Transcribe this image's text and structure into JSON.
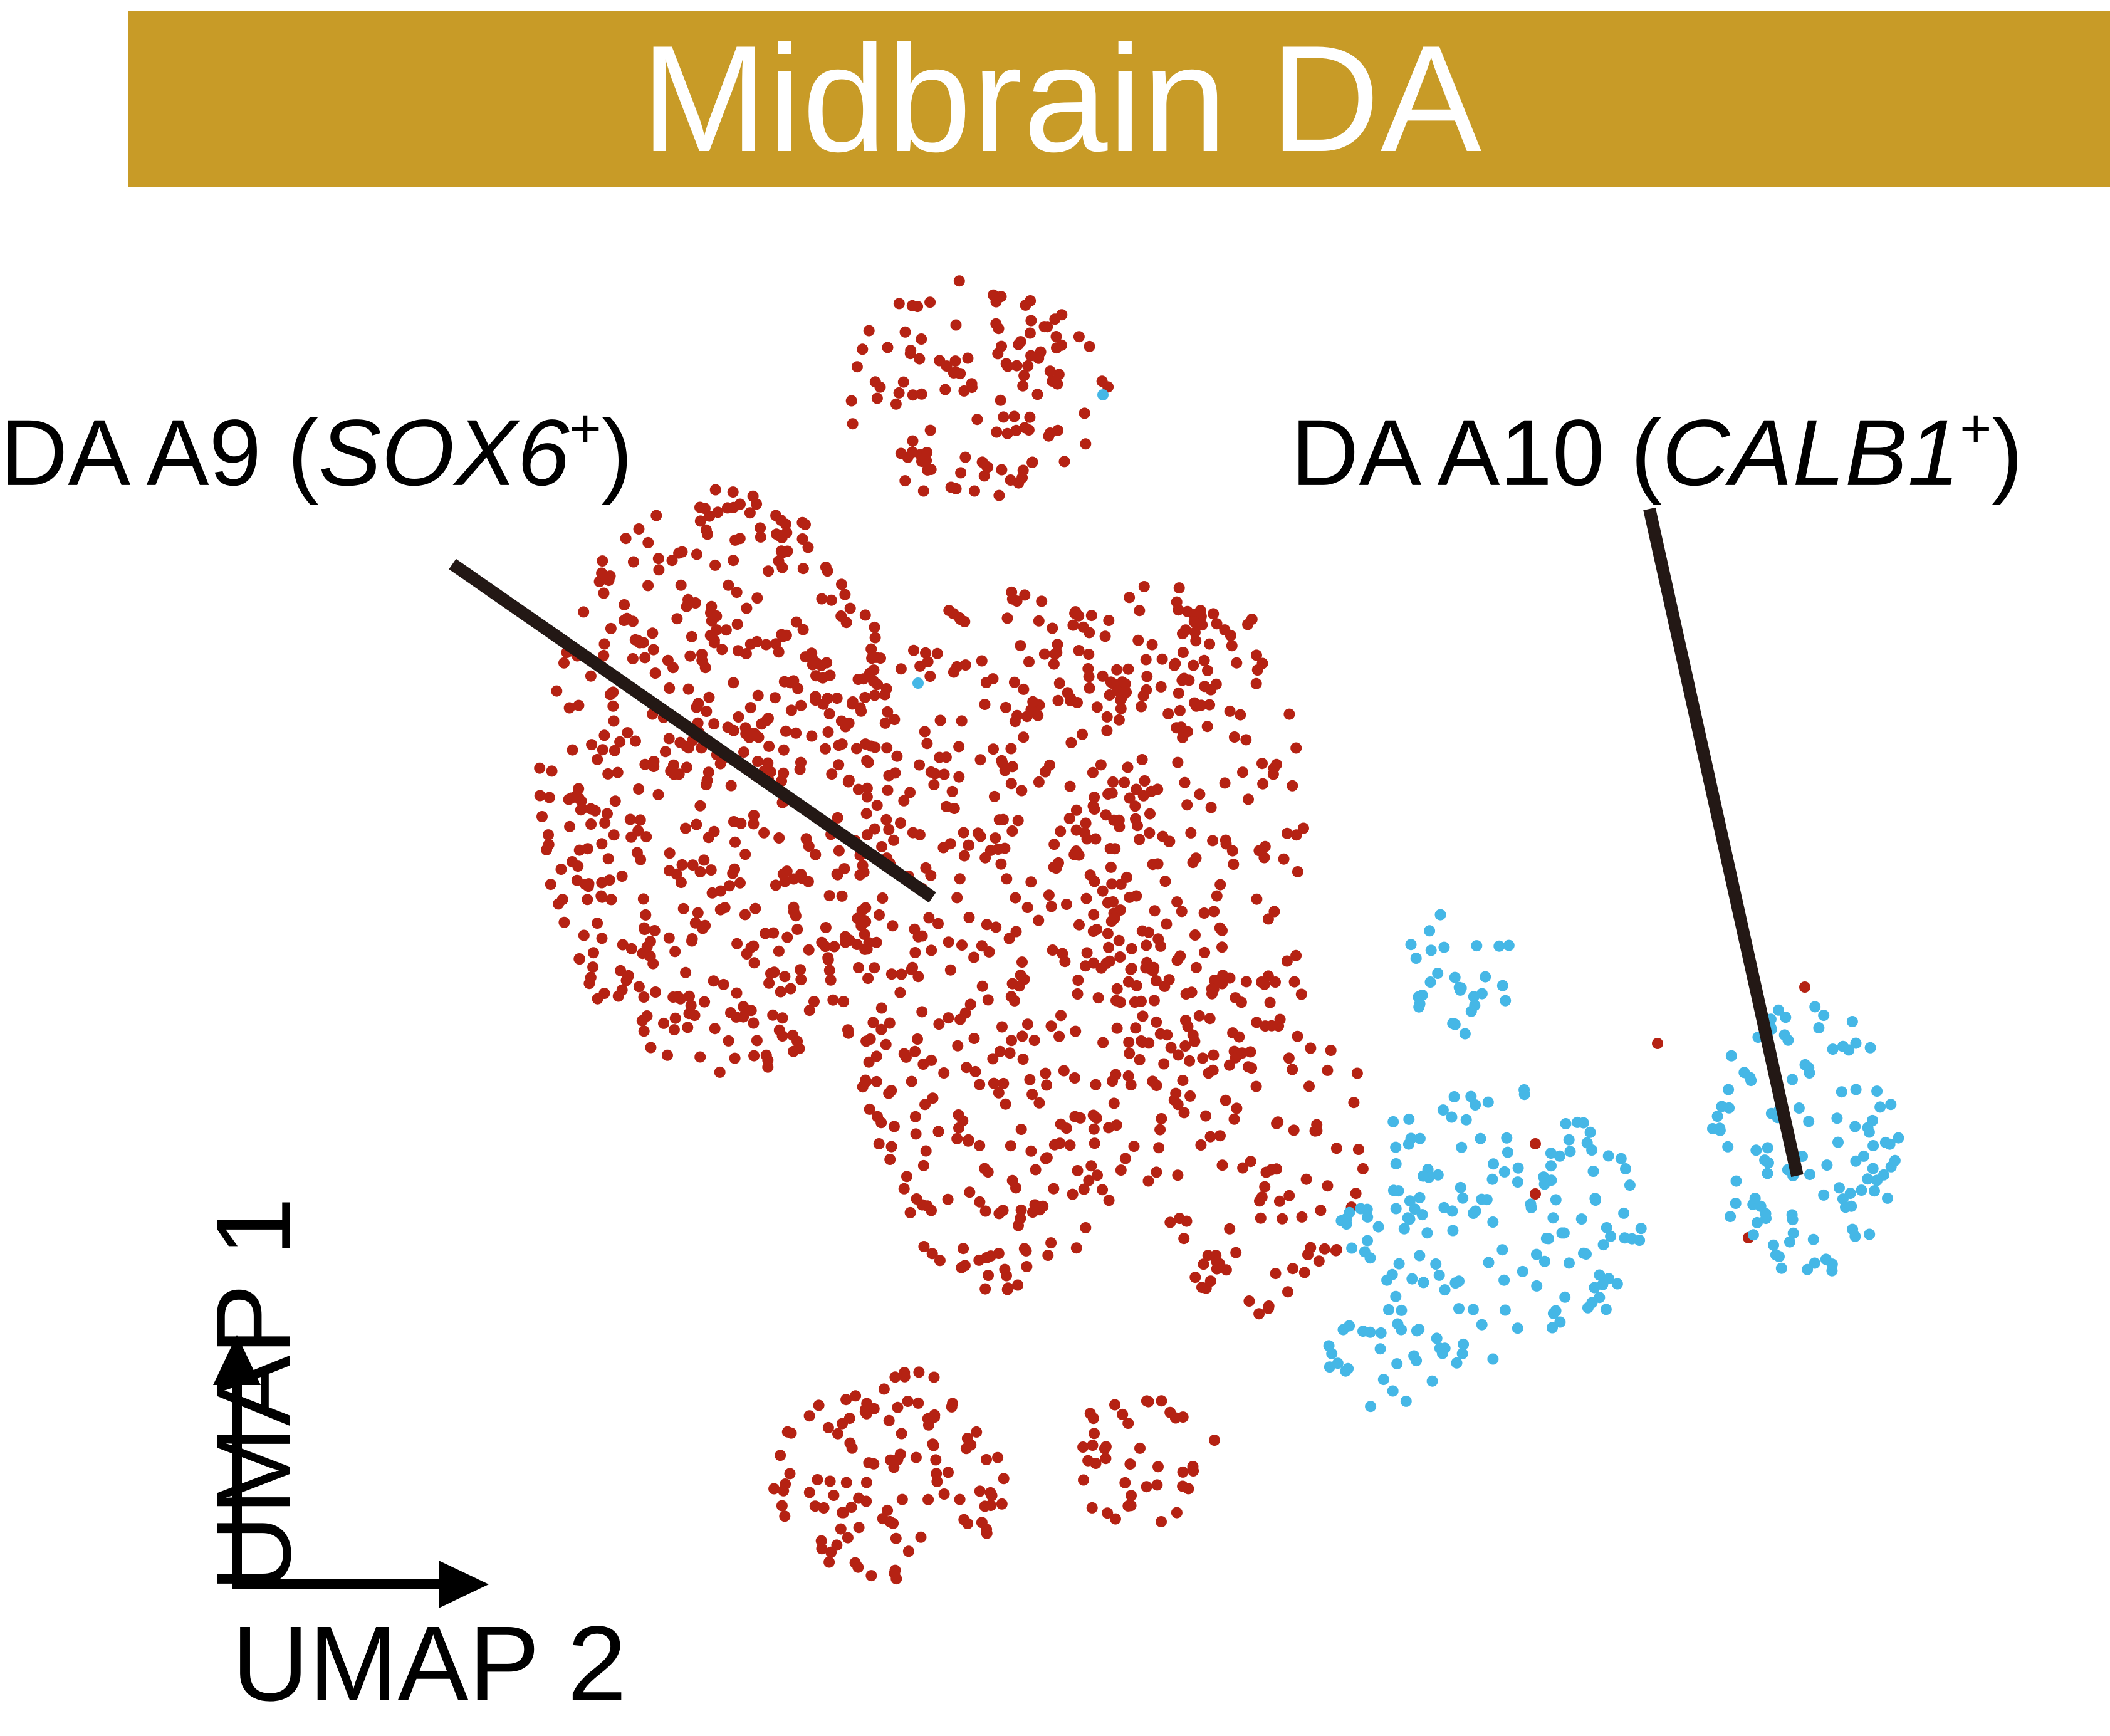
{
  "title": "Midbrain DA",
  "colors": {
    "banner": "#C89B27",
    "title_text": "#ffffff",
    "a9_points": "#B52213",
    "a10_points": "#45B7E6",
    "leader_line": "#231815"
  },
  "labels": {
    "a9_prefix": "DA A9 (",
    "a9_gene": "SOX6",
    "a9_sup": "+",
    "a9_suffix": ")",
    "a10_prefix": "DA A10 (",
    "a10_gene": "CALB1",
    "a10_sup": "+",
    "a10_suffix": ")"
  },
  "axes": {
    "x_label": "UMAP 2",
    "y_label": "UMAP 1"
  },
  "chart_data": {
    "type": "scatter",
    "title": "Midbrain DA",
    "xlabel": "UMAP 2",
    "ylabel": "UMAP 1",
    "grid": false,
    "legend": "none",
    "series": [
      {
        "name": "DA A9 (SOX6+)",
        "color": "#B52213",
        "regions": [
          {
            "cx": 1560,
            "cy": 620,
            "rx": 210,
            "ry": 180,
            "n": 120
          },
          {
            "cx": 1150,
            "cy": 1250,
            "rx": 290,
            "ry": 470,
            "n": 520
          },
          {
            "cx": 1600,
            "cy": 1500,
            "rx": 260,
            "ry": 560,
            "n": 420
          },
          {
            "cx": 1900,
            "cy": 1350,
            "rx": 190,
            "ry": 380,
            "n": 160
          },
          {
            "cx": 2000,
            "cy": 1820,
            "rx": 180,
            "ry": 280,
            "n": 120
          },
          {
            "cx": 1420,
            "cy": 2350,
            "rx": 190,
            "ry": 170,
            "n": 110
          },
          {
            "cx": 1830,
            "cy": 2330,
            "rx": 120,
            "ry": 120,
            "n": 40
          },
          {
            "cx": 1850,
            "cy": 1050,
            "rx": 170,
            "ry": 130,
            "n": 60
          }
        ],
        "extra_points": [
          [
            2450,
            1825
          ],
          [
            2880,
            1575
          ],
          [
            2450,
            1905
          ],
          [
            2645,
            1665
          ],
          [
            2790,
            1975
          ]
        ]
      },
      {
        "name": "DA A10 (CALB1+)",
        "color": "#45B7E6",
        "regions": [
          {
            "cx": 2380,
            "cy": 1950,
            "rx": 240,
            "ry": 220,
            "n": 150
          },
          {
            "cx": 2880,
            "cy": 1820,
            "rx": 150,
            "ry": 230,
            "n": 110
          },
          {
            "cx": 2330,
            "cy": 1540,
            "rx": 90,
            "ry": 110,
            "n": 30
          },
          {
            "cx": 2200,
            "cy": 2180,
            "rx": 130,
            "ry": 70,
            "n": 25
          }
        ],
        "extra_points": [
          [
            1760,
            630
          ],
          [
            1465,
            1090
          ]
        ]
      }
    ]
  }
}
